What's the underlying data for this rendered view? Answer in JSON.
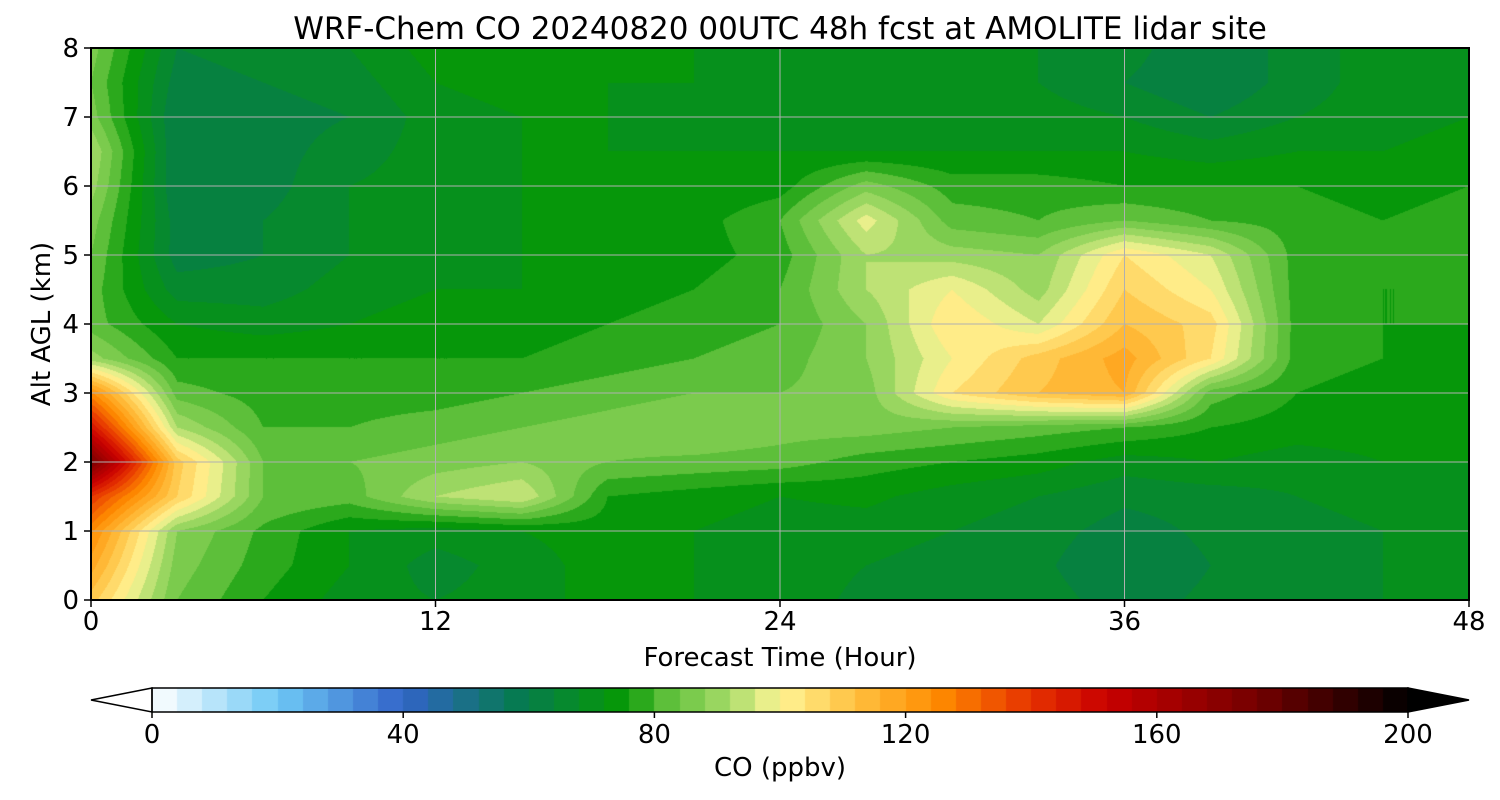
{
  "chart_data": {
    "type": "heatmap",
    "title": "WRF-Chem CO  20240820 00UTC 48h fcst at AMOLITE lidar site",
    "xlabel": "Forecast Time (Hour)",
    "ylabel": "Alt AGL (km)",
    "xlim": [
      0,
      48
    ],
    "ylim": [
      0,
      8
    ],
    "x_ticks": [
      0,
      12,
      24,
      36,
      48
    ],
    "y_ticks": [
      0,
      1,
      2,
      3,
      4,
      5,
      6,
      7,
      8
    ],
    "grid": true,
    "x": [
      0,
      3,
      6,
      9,
      12,
      15,
      18,
      21,
      24,
      27,
      30,
      33,
      36,
      39,
      42,
      45,
      48
    ],
    "y": [
      0,
      0.5,
      1,
      1.5,
      2,
      2.5,
      3,
      3.5,
      4,
      4.5,
      5,
      5.5,
      6,
      6.5,
      7,
      7.5,
      8
    ],
    "z": [
      [
        110,
        84,
        76,
        70,
        68,
        70,
        74,
        72,
        70,
        67,
        68,
        66,
        62,
        65,
        67,
        68,
        70
      ],
      [
        118,
        86,
        78,
        72,
        66,
        70,
        74,
        72,
        70,
        68,
        66,
        65,
        60,
        64,
        66,
        68,
        70
      ],
      [
        125,
        88,
        79,
        72,
        70,
        72,
        74,
        72,
        70,
        70,
        68,
        66,
        62,
        65,
        66,
        68,
        70
      ],
      [
        140,
        108,
        84,
        82,
        92,
        96,
        76,
        74,
        72,
        73,
        70,
        68,
        65,
        66,
        68,
        70,
        72
      ],
      [
        175,
        110,
        84,
        84,
        86,
        88,
        84,
        83,
        82,
        78,
        76,
        74,
        70,
        72,
        70,
        72,
        72
      ],
      [
        148,
        92,
        80,
        80,
        82,
        84,
        86,
        88,
        86,
        86,
        84,
        82,
        80,
        76,
        74,
        74,
        74
      ],
      [
        125,
        82,
        78,
        78,
        78,
        80,
        82,
        84,
        84,
        86,
        104,
        112,
        116,
        82,
        76,
        74,
        74
      ],
      [
        90,
        76,
        76,
        76,
        76,
        76,
        78,
        80,
        82,
        88,
        100,
        110,
        118,
        104,
        78,
        76,
        75
      ],
      [
        82,
        72,
        70,
        72,
        74,
        74,
        76,
        78,
        80,
        88,
        104,
        96,
        112,
        106,
        78,
        76,
        76
      ],
      [
        82,
        66,
        66,
        70,
        72,
        72,
        74,
        76,
        80,
        92,
        100,
        90,
        108,
        100,
        78,
        76,
        76
      ],
      [
        84,
        62,
        64,
        68,
        70,
        72,
        74,
        74,
        78,
        92,
        90,
        88,
        104,
        96,
        78,
        77,
        78
      ],
      [
        86,
        62,
        64,
        68,
        70,
        72,
        74,
        74,
        80,
        98,
        82,
        80,
        84,
        80,
        78,
        76,
        78
      ],
      [
        90,
        60,
        62,
        68,
        70,
        72,
        72,
        72,
        74,
        86,
        78,
        78,
        76,
        76,
        76,
        74,
        76
      ],
      [
        92,
        60,
        62,
        66,
        70,
        72,
        72,
        72,
        72,
        72,
        72,
        72,
        72,
        70,
        72,
        72,
        74
      ],
      [
        86,
        60,
        62,
        64,
        70,
        72,
        72,
        70,
        70,
        72,
        70,
        70,
        68,
        64,
        68,
        70,
        72
      ],
      [
        84,
        62,
        64,
        66,
        72,
        74,
        72,
        72,
        70,
        70,
        70,
        68,
        64,
        60,
        66,
        70,
        72
      ],
      [
        86,
        64,
        66,
        68,
        74,
        76,
        74,
        72,
        70,
        70,
        70,
        68,
        66,
        60,
        66,
        70,
        72
      ]
    ],
    "colorbar": {
      "label": "CO  (ppbv)",
      "min": 0,
      "max": 200,
      "ticks": [
        0,
        40,
        80,
        120,
        160,
        200
      ],
      "extend": "both",
      "colors": [
        "#ffffff",
        "#6ec8f5",
        "#3264c8",
        "#067a52",
        "#069906",
        "#5dbf3a",
        "#a8dc6a",
        "#fff596",
        "#ffc040",
        "#ff8c00",
        "#e63200",
        "#c80000",
        "#780000",
        "#000000"
      ],
      "color_stops": [
        0,
        20,
        40,
        58,
        75,
        82,
        92,
        100,
        112,
        125,
        140,
        152,
        175,
        200
      ]
    }
  }
}
